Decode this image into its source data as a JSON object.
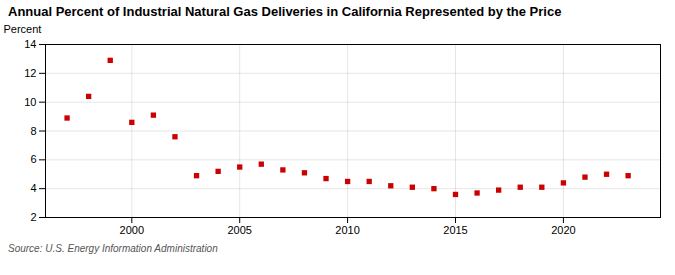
{
  "chart_data": {
    "type": "scatter",
    "title": "Annual Percent of Industrial Natural Gas Deliveries in California Represented by the Price",
    "ylabel": "Percent",
    "annotations": [
      "Source: U.S. Energy Information Administration"
    ],
    "x": [
      1997,
      1998,
      1999,
      2000,
      2001,
      2002,
      2003,
      2004,
      2005,
      2006,
      2007,
      2008,
      2009,
      2010,
      2011,
      2012,
      2013,
      2014,
      2015,
      2016,
      2017,
      2018,
      2019,
      2020,
      2021,
      2022,
      2023
    ],
    "values": [
      8.9,
      10.4,
      12.9,
      8.6,
      9.1,
      7.6,
      4.9,
      5.2,
      5.5,
      5.7,
      5.3,
      5.1,
      4.7,
      4.5,
      4.5,
      4.2,
      4.1,
      4.0,
      3.6,
      3.7,
      3.9,
      4.1,
      4.1,
      4.4,
      4.8,
      5.0,
      4.9
    ],
    "color": "#cc0000",
    "marker": "square",
    "xlim": [
      1996,
      2024.5
    ],
    "xticks": [
      2000,
      2005,
      2010,
      2015,
      2020
    ],
    "ylim": [
      2,
      14
    ],
    "yticks": [
      2,
      4,
      6,
      8,
      10,
      12,
      14
    ],
    "grid": true
  }
}
